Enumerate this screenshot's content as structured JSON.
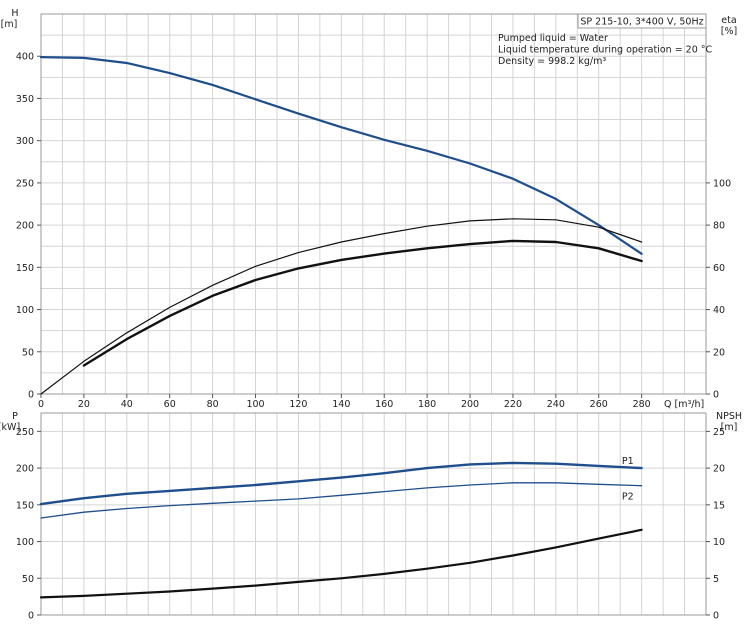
{
  "chart_data": [
    {
      "type": "line",
      "id": "top",
      "title": "SP 215-10, 3*400 V, 50Hz",
      "annotations": [
        "Pumped liquid = Water",
        "Liquid temperature during operation = 20 °C",
        "Density = 998.2 kg/m³"
      ],
      "xlabel": "Q [m³/h]",
      "ylabel_left": [
        "H",
        "[m]"
      ],
      "ylabel_right": [
        "eta",
        "[%]"
      ],
      "xlim": [
        0,
        310
      ],
      "ylim_left": [
        0,
        450
      ],
      "ylim_right": [
        0,
        180
      ],
      "xticks": [
        0,
        20,
        40,
        60,
        80,
        100,
        120,
        140,
        160,
        180,
        200,
        220,
        240,
        260,
        280
      ],
      "yticks_left": [
        0,
        50,
        100,
        150,
        200,
        250,
        300,
        350,
        400
      ],
      "yticks_right": [
        0,
        20,
        40,
        60,
        80,
        100
      ],
      "grid": true,
      "series": [
        {
          "axis": "left",
          "color": "#1f4e8c",
          "width": 2.2,
          "x": [
            0,
            20,
            40,
            60,
            80,
            100,
            120,
            140,
            160,
            180,
            200,
            220,
            240,
            260,
            280
          ],
          "y": [
            399,
            398,
            392,
            380,
            366,
            349,
            332,
            316,
            301,
            288,
            273,
            255,
            231,
            200,
            166
          ]
        },
        {
          "axis": "right",
          "color": "#111111",
          "width": 1.2,
          "x": [
            0,
            20,
            40,
            60,
            80,
            100,
            120,
            140,
            160,
            180,
            200,
            220,
            240,
            260,
            280
          ],
          "y": [
            0,
            15.5,
            29,
            41,
            51.5,
            60.5,
            67,
            72,
            76,
            79.5,
            82,
            83,
            82.5,
            79,
            72
          ]
        },
        {
          "axis": "right",
          "color": "#111111",
          "width": 2.4,
          "x": [
            20,
            40,
            60,
            80,
            100,
            120,
            140,
            160,
            180,
            200,
            220,
            240,
            260,
            280
          ],
          "y": [
            13.5,
            26,
            37,
            46.5,
            54,
            59.5,
            63.5,
            66.5,
            69,
            71,
            72.5,
            72,
            69,
            63
          ]
        }
      ]
    },
    {
      "type": "line",
      "id": "bottom",
      "xlim": [
        0,
        310
      ],
      "ylim_left": [
        0,
        275
      ],
      "ylim_right": [
        0,
        27.5
      ],
      "ylabel_left": [
        "P",
        "[kW]"
      ],
      "ylabel_right": [
        "NPSH",
        "[m]"
      ],
      "yticks_left": [
        0,
        50,
        100,
        150,
        200,
        250
      ],
      "yticks_right": [
        0,
        5,
        10,
        15,
        20,
        25
      ],
      "grid": true,
      "series": [
        {
          "name": "P1",
          "axis": "left",
          "color": "#1f4e8c",
          "width": 2.4,
          "x": [
            0,
            20,
            40,
            60,
            80,
            100,
            120,
            140,
            160,
            180,
            200,
            220,
            240,
            260,
            280
          ],
          "y": [
            151,
            159,
            165,
            169,
            173,
            177,
            182,
            187,
            193,
            200,
            205,
            207,
            206,
            203,
            200
          ]
        },
        {
          "name": "P2",
          "axis": "left",
          "color": "#1f4e8c",
          "width": 1.3,
          "x": [
            0,
            20,
            40,
            60,
            80,
            100,
            120,
            140,
            160,
            180,
            200,
            220,
            240,
            260,
            280
          ],
          "y": [
            132,
            140,
            145,
            149,
            152,
            155,
            158,
            163,
            168,
            173,
            177,
            180,
            180,
            178,
            176
          ]
        },
        {
          "axis": "right",
          "color": "#111111",
          "width": 2.2,
          "x": [
            0,
            20,
            40,
            60,
            80,
            100,
            120,
            140,
            160,
            180,
            200,
            220,
            240,
            260,
            280
          ],
          "y": [
            2.4,
            2.6,
            2.9,
            3.2,
            3.6,
            4.0,
            4.5,
            5.0,
            5.6,
            6.3,
            7.1,
            8.1,
            9.2,
            10.4,
            11.6
          ]
        }
      ]
    }
  ]
}
